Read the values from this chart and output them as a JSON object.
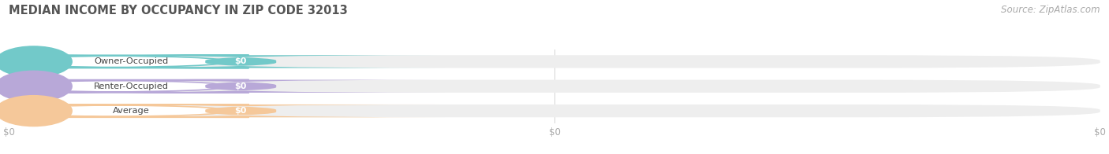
{
  "title": "MEDIAN INCOME BY OCCUPANCY IN ZIP CODE 32013",
  "source": "Source: ZipAtlas.com",
  "categories": [
    "Owner-Occupied",
    "Renter-Occupied",
    "Average"
  ],
  "values": [
    0,
    0,
    0
  ],
  "bar_colors": [
    "#72c9c9",
    "#b8a8d8",
    "#f5c89a"
  ],
  "track_color": "#eeeeee",
  "value_labels": [
    "$0",
    "$0",
    "$0"
  ],
  "background_color": "#ffffff",
  "title_fontsize": 10.5,
  "source_fontsize": 8.5,
  "title_color": "#555555",
  "label_text_color": "#444444",
  "tick_color": "#aaaaaa",
  "source_color": "#aaaaaa"
}
